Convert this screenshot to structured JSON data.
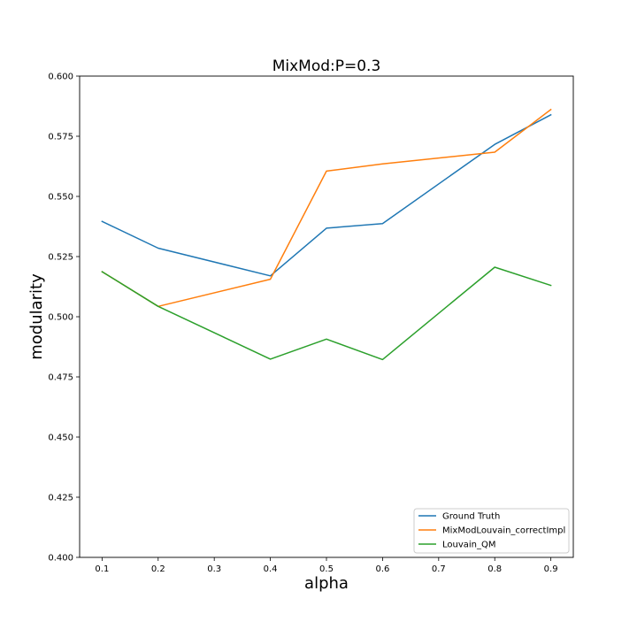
{
  "chart_data": {
    "type": "line",
    "title": "MixMod:P=0.3",
    "xlabel": "alpha",
    "ylabel": "modularity",
    "xlim": [
      0.06,
      0.94
    ],
    "ylim": [
      0.4,
      0.6
    ],
    "xticks": [
      0.1,
      0.2,
      0.3,
      0.4,
      0.5,
      0.6,
      0.7,
      0.8,
      0.9
    ],
    "xtick_labels": [
      "0.1",
      "0.2",
      "0.3",
      "0.4",
      "0.5",
      "0.6",
      "0.7",
      "0.8",
      "0.9"
    ],
    "yticks": [
      0.4,
      0.425,
      0.45,
      0.475,
      0.5,
      0.525,
      0.55,
      0.575,
      0.6
    ],
    "ytick_labels": [
      "0.400",
      "0.425",
      "0.450",
      "0.475",
      "0.500",
      "0.525",
      "0.550",
      "0.575",
      "0.600"
    ],
    "grid": false,
    "legend_position": "lower right",
    "series": [
      {
        "name": "Ground Truth",
        "color": "#1f77b4",
        "x": [
          0.1,
          0.2,
          0.4,
          0.5,
          0.6,
          0.8,
          0.9
        ],
        "values": [
          0.5396,
          0.5285,
          0.517,
          0.5368,
          0.5387,
          0.5716,
          0.5839
        ]
      },
      {
        "name": "MixModLouvain_correctImpl",
        "color": "#ff7f0e",
        "x": [
          0.1,
          0.2,
          0.4,
          0.5,
          0.6,
          0.8,
          0.9
        ],
        "values": [
          0.5187,
          0.5043,
          0.5156,
          0.5605,
          0.5635,
          0.5684,
          0.5861
        ]
      },
      {
        "name": "Louvain_QM",
        "color": "#2ca02c",
        "x": [
          0.1,
          0.2,
          0.4,
          0.5,
          0.6,
          0.8,
          0.9
        ],
        "values": [
          0.5187,
          0.5043,
          0.4824,
          0.4907,
          0.4822,
          0.5206,
          0.513
        ]
      }
    ]
  }
}
